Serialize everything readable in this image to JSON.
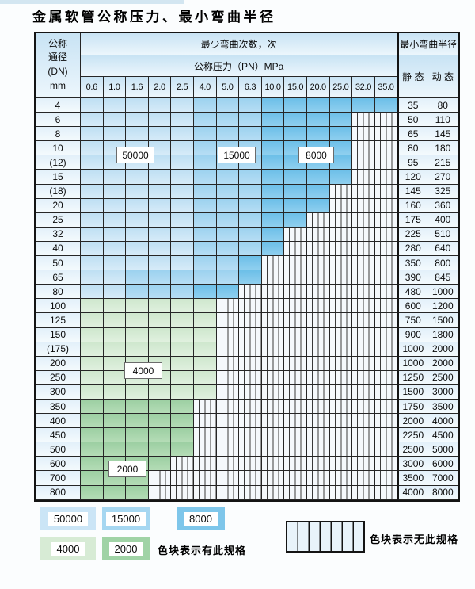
{
  "page": {
    "title": "金属软管公称压力、最小弯曲半径"
  },
  "table": {
    "dn_header_lines": [
      "公称",
      "通径",
      "(DN)",
      "mm"
    ],
    "cycles_header": "最少弯曲次数，次",
    "pressure_header": "公称压力（PN）MPa",
    "pressure_columns": [
      "0.6",
      "1.0",
      "1.6",
      "2.0",
      "2.5",
      "4.0",
      "5.0",
      "6.3",
      "10.0",
      "15.0",
      "20.0",
      "25.0",
      "32.0",
      "35.0"
    ],
    "radius_header": "最小弯曲半径",
    "static_header": "静 态",
    "dynamic_header": "动 态",
    "rows": [
      {
        "dn": "4",
        "zones": "11111222333333",
        "static": "35",
        "dynamic": "80"
      },
      {
        "dn": "6",
        "zones": "11111222333300",
        "static": "50",
        "dynamic": "110"
      },
      {
        "dn": "8",
        "zones": "11111222333300",
        "static": "65",
        "dynamic": "145"
      },
      {
        "dn": "10",
        "zones": "11111222333300",
        "static": "80",
        "dynamic": "180"
      },
      {
        "dn": "(12)",
        "zones": "11111222333300",
        "static": "95",
        "dynamic": "215"
      },
      {
        "dn": "15",
        "zones": "11111222333300",
        "static": "120",
        "dynamic": "270"
      },
      {
        "dn": "(18)",
        "zones": "11111222333000",
        "static": "145",
        "dynamic": "325"
      },
      {
        "dn": "20",
        "zones": "11111222333000",
        "static": "160",
        "dynamic": "360"
      },
      {
        "dn": "25",
        "zones": "11111222330000",
        "static": "175",
        "dynamic": "400"
      },
      {
        "dn": "32",
        "zones": "11111222300000",
        "static": "225",
        "dynamic": "510"
      },
      {
        "dn": "40",
        "zones": "11111222300000",
        "static": "280",
        "dynamic": "640"
      },
      {
        "dn": "50",
        "zones": "11111223000000",
        "static": "350",
        "dynamic": "800"
      },
      {
        "dn": "65",
        "zones": "11222223000000",
        "static": "390",
        "dynamic": "845"
      },
      {
        "dn": "80",
        "zones": "11222330000000",
        "static": "480",
        "dynamic": "1000"
      },
      {
        "dn": "100",
        "zones": "44444400000000",
        "static": "600",
        "dynamic": "1200"
      },
      {
        "dn": "125",
        "zones": "44444400000000",
        "static": "750",
        "dynamic": "1500"
      },
      {
        "dn": "150",
        "zones": "44444400000000",
        "static": "900",
        "dynamic": "1800"
      },
      {
        "dn": "(175)",
        "zones": "44444400000000",
        "static": "1000",
        "dynamic": "2000"
      },
      {
        "dn": "200",
        "zones": "44444400000000",
        "static": "1000",
        "dynamic": "2000"
      },
      {
        "dn": "250",
        "zones": "44444400000000",
        "static": "1250",
        "dynamic": "2500"
      },
      {
        "dn": "300",
        "zones": "44444400000000",
        "static": "1500",
        "dynamic": "3000"
      },
      {
        "dn": "350",
        "zones": "55555000000000",
        "static": "1750",
        "dynamic": "3500"
      },
      {
        "dn": "400",
        "zones": "55555000000000",
        "static": "2000",
        "dynamic": "4000"
      },
      {
        "dn": "450",
        "zones": "55555000000000",
        "static": "2250",
        "dynamic": "4500"
      },
      {
        "dn": "500",
        "zones": "55555000000000",
        "static": "2500",
        "dynamic": "5000"
      },
      {
        "dn": "600",
        "zones": "55550000000000",
        "static": "3000",
        "dynamic": "6000"
      },
      {
        "dn": "700",
        "zones": "55500000000000",
        "static": "3500",
        "dynamic": "7000"
      },
      {
        "dn": "800",
        "zones": "55500000000000",
        "static": "4000",
        "dynamic": "8000"
      }
    ]
  },
  "zones": {
    "1": {
      "cycles": "50000",
      "color": "#c8e3f5"
    },
    "2": {
      "cycles": "15000",
      "color": "#a4d5f0"
    },
    "3": {
      "cycles": "8000",
      "color": "#79c6ec"
    },
    "4": {
      "cycles": "4000",
      "color": "#d5ead3"
    },
    "5": {
      "cycles": "2000",
      "color": "#a4d5a9"
    },
    "0": {
      "cycles": "无此规格",
      "color": "hatched"
    }
  },
  "overlay_labels": [
    {
      "label": "50000"
    },
    {
      "label": "15000"
    },
    {
      "label": "8000"
    },
    {
      "label": "4000"
    },
    {
      "label": "2000"
    }
  ],
  "legend": {
    "swatches": [
      {
        "label": "50000"
      },
      {
        "label": "15000"
      },
      {
        "label": "8000"
      },
      {
        "label": "4000"
      },
      {
        "label": "2000"
      }
    ],
    "has_spec_note": "色块表示有此规格",
    "no_spec_note": "色块表示无此规格"
  }
}
